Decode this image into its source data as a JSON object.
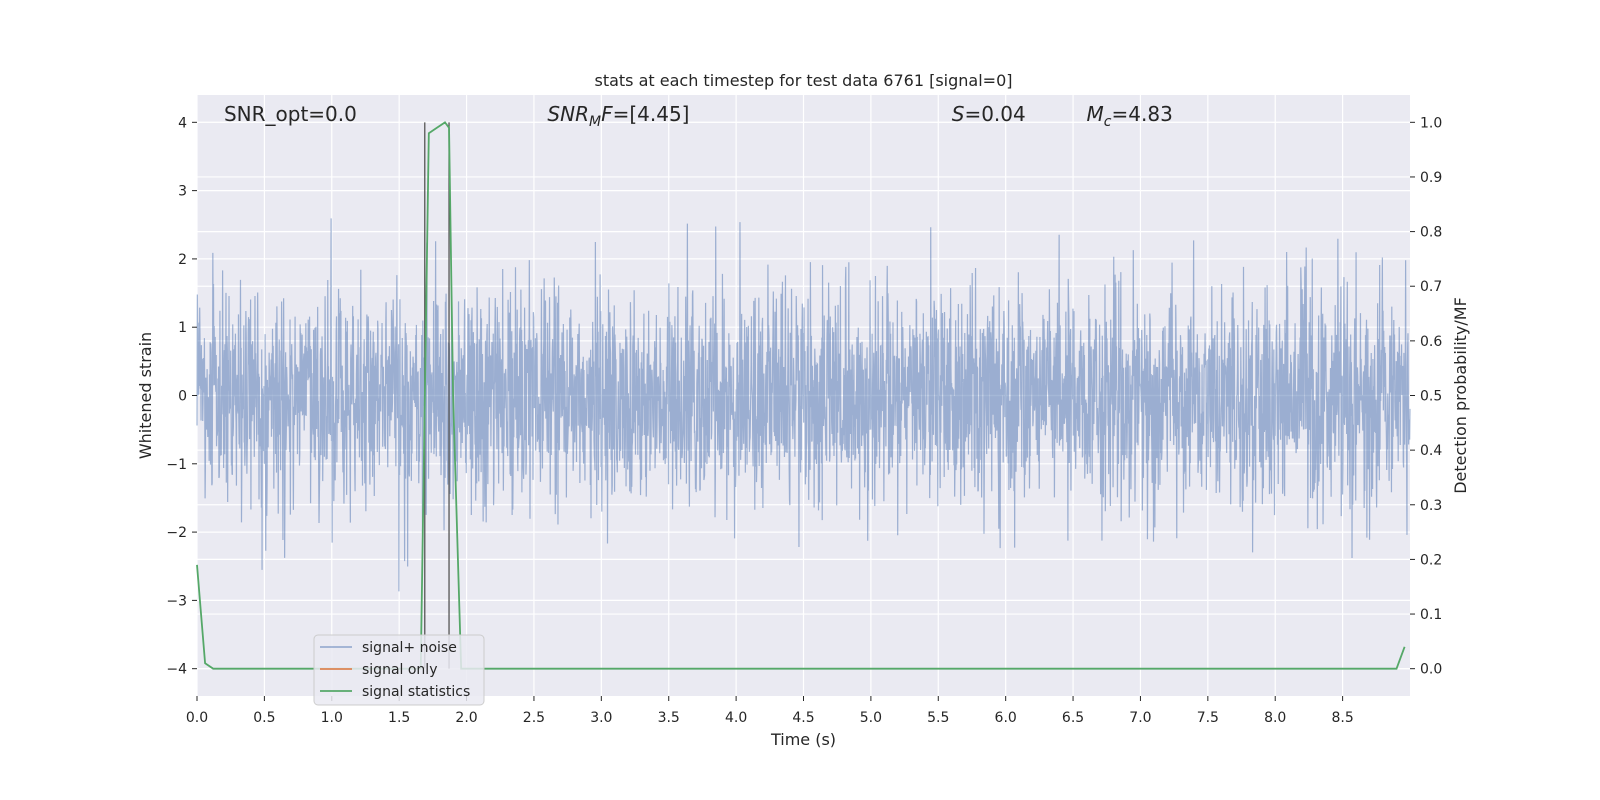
{
  "chart_data": {
    "type": "line",
    "title": "stats at each timestep for test data 6761 [signal=0]",
    "xlabel": "Time (s)",
    "ylabel": "Whitened strain",
    "y2label": "Detection probability/MF",
    "xlim": [
      0,
      9.0
    ],
    "ylim": [
      -4.4,
      4.4
    ],
    "y2lim": [
      -0.05,
      1.05
    ],
    "xticks": [
      "0.0",
      "0.5",
      "1.0",
      "1.5",
      "2.0",
      "2.5",
      "3.0",
      "3.5",
      "4.0",
      "4.5",
      "5.0",
      "5.5",
      "6.0",
      "6.5",
      "7.0",
      "7.5",
      "8.0",
      "8.5"
    ],
    "xtick_values": [
      0.0,
      0.5,
      1.0,
      1.5,
      2.0,
      2.5,
      3.0,
      3.5,
      4.0,
      4.5,
      5.0,
      5.5,
      6.0,
      6.5,
      7.0,
      7.5,
      8.0,
      8.5
    ],
    "yticks": [
      "−4",
      "−3",
      "−2",
      "−1",
      "0",
      "1",
      "2",
      "3",
      "4"
    ],
    "ytick_values": [
      -4,
      -3,
      -2,
      -1,
      0,
      1,
      2,
      3,
      4
    ],
    "y2ticks": [
      "0.0",
      "0.1",
      "0.2",
      "0.3",
      "0.4",
      "0.5",
      "0.6",
      "0.7",
      "0.8",
      "0.9",
      "1.0"
    ],
    "y2tick_values": [
      0.0,
      0.1,
      0.2,
      0.3,
      0.4,
      0.5,
      0.6,
      0.7,
      0.8,
      0.9,
      1.0
    ],
    "grid": true,
    "legend_position": "lower-left",
    "annotations": [
      {
        "prefix": "SNR_opt=",
        "value": "0.0",
        "x": 0.2
      },
      {
        "prefix": "SNR",
        "sub": "M",
        "mid": "F",
        "suffix": "=[4.45]",
        "x": 2.6
      },
      {
        "prefix": "S",
        "suffix": "=0.04",
        "x": 5.6
      },
      {
        "prefix": "M",
        "sub": "c",
        "suffix": "=4.83",
        "x": 6.6
      }
    ],
    "vlines": [
      1.69,
      1.87
    ],
    "series": [
      {
        "name": "signal+ noise",
        "color": "#4c72b0",
        "alpha": 0.5,
        "kind": "noise",
        "std": 0.8,
        "max_abs": 4.0
      },
      {
        "name": "signal only",
        "color": "#dd8452",
        "kind": "flat",
        "values": []
      },
      {
        "name": "signal statistics",
        "color": "#55a868",
        "kind": "y2",
        "x": [
          0.0,
          0.06,
          0.12,
          1.6,
          1.66,
          1.72,
          1.78,
          1.84,
          1.87,
          1.9,
          1.96,
          2.0,
          8.9,
          8.96
        ],
        "values": [
          0.19,
          0.01,
          0.0,
          0.0,
          0.0,
          0.98,
          0.99,
          1.0,
          0.99,
          0.5,
          0.0,
          0.0,
          0.0,
          0.04
        ]
      }
    ]
  }
}
